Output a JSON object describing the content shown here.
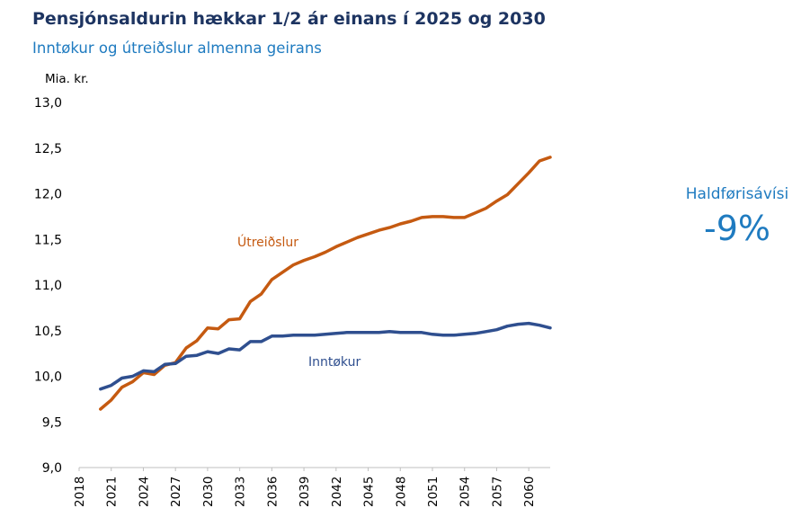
{
  "header": {
    "title": "Pensjónsaldurin hækkar 1/2 ár einans í 2025 og 2030",
    "subtitle": "Inntøkur og útreiðslur almenna geirans"
  },
  "side_stat": {
    "label": "Haldførisávísi",
    "value": "-9%"
  },
  "colors": {
    "utreidslur": "#c55a11",
    "inntokur": "#2f4f8f",
    "title": "#1d3461",
    "accent": "#1f7bc0"
  },
  "chart_data": {
    "type": "line",
    "title": "Pensjónsaldurin hækkar 1/2 ár einans í 2025 og 2030",
    "subtitle": "Inntøkur og útreiðslur almenna geirans",
    "ylabel": "Mia. kr.",
    "xlabel": "",
    "ylim": [
      9.0,
      13.0
    ],
    "yticks": [
      "9,0",
      "9,5",
      "10,0",
      "10,5",
      "11,0",
      "11,5",
      "12,0",
      "12,5",
      "13,0"
    ],
    "xlim": [
      2018,
      2062
    ],
    "xticks": [
      "2018",
      "2021",
      "2024",
      "2027",
      "2030",
      "2033",
      "2036",
      "2039",
      "2042",
      "2045",
      "2048",
      "2051",
      "2054",
      "2057",
      "2060"
    ],
    "grid": false,
    "series": [
      {
        "name": "Útreiðslur",
        "x": [
          2020,
          2021,
          2022,
          2023,
          2024,
          2025,
          2026,
          2027,
          2028,
          2029,
          2030,
          2031,
          2032,
          2033,
          2034,
          2035,
          2036,
          2037,
          2038,
          2039,
          2040,
          2041,
          2042,
          2043,
          2044,
          2045,
          2046,
          2047,
          2048,
          2049,
          2050,
          2051,
          2052,
          2053,
          2054,
          2055,
          2056,
          2057,
          2058,
          2059,
          2060,
          2061,
          2062
        ],
        "values": [
          9.64,
          9.74,
          9.88,
          9.94,
          10.04,
          10.02,
          10.12,
          10.15,
          10.31,
          10.39,
          10.53,
          10.52,
          10.62,
          10.63,
          10.82,
          10.9,
          11.06,
          11.14,
          11.22,
          11.27,
          11.31,
          11.36,
          11.42,
          11.47,
          11.52,
          11.56,
          11.6,
          11.63,
          11.67,
          11.7,
          11.74,
          11.75,
          11.75,
          11.74,
          11.74,
          11.79,
          11.84,
          11.92,
          11.99,
          12.11,
          12.23,
          12.36,
          12.4
        ]
      },
      {
        "name": "Inntøkur",
        "x": [
          2020,
          2021,
          2022,
          2023,
          2024,
          2025,
          2026,
          2027,
          2028,
          2029,
          2030,
          2031,
          2032,
          2033,
          2034,
          2035,
          2036,
          2037,
          2038,
          2039,
          2040,
          2041,
          2042,
          2043,
          2044,
          2045,
          2046,
          2047,
          2048,
          2049,
          2050,
          2051,
          2052,
          2053,
          2054,
          2055,
          2056,
          2057,
          2058,
          2059,
          2060,
          2061,
          2062
        ],
        "values": [
          9.86,
          9.9,
          9.98,
          10.0,
          10.06,
          10.05,
          10.13,
          10.14,
          10.22,
          10.23,
          10.27,
          10.25,
          10.3,
          10.29,
          10.38,
          10.38,
          10.44,
          10.44,
          10.45,
          10.45,
          10.45,
          10.46,
          10.47,
          10.48,
          10.48,
          10.48,
          10.48,
          10.49,
          10.48,
          10.48,
          10.48,
          10.46,
          10.45,
          10.45,
          10.46,
          10.47,
          10.49,
          10.51,
          10.55,
          10.57,
          10.58,
          10.56,
          10.53
        ]
      }
    ]
  }
}
